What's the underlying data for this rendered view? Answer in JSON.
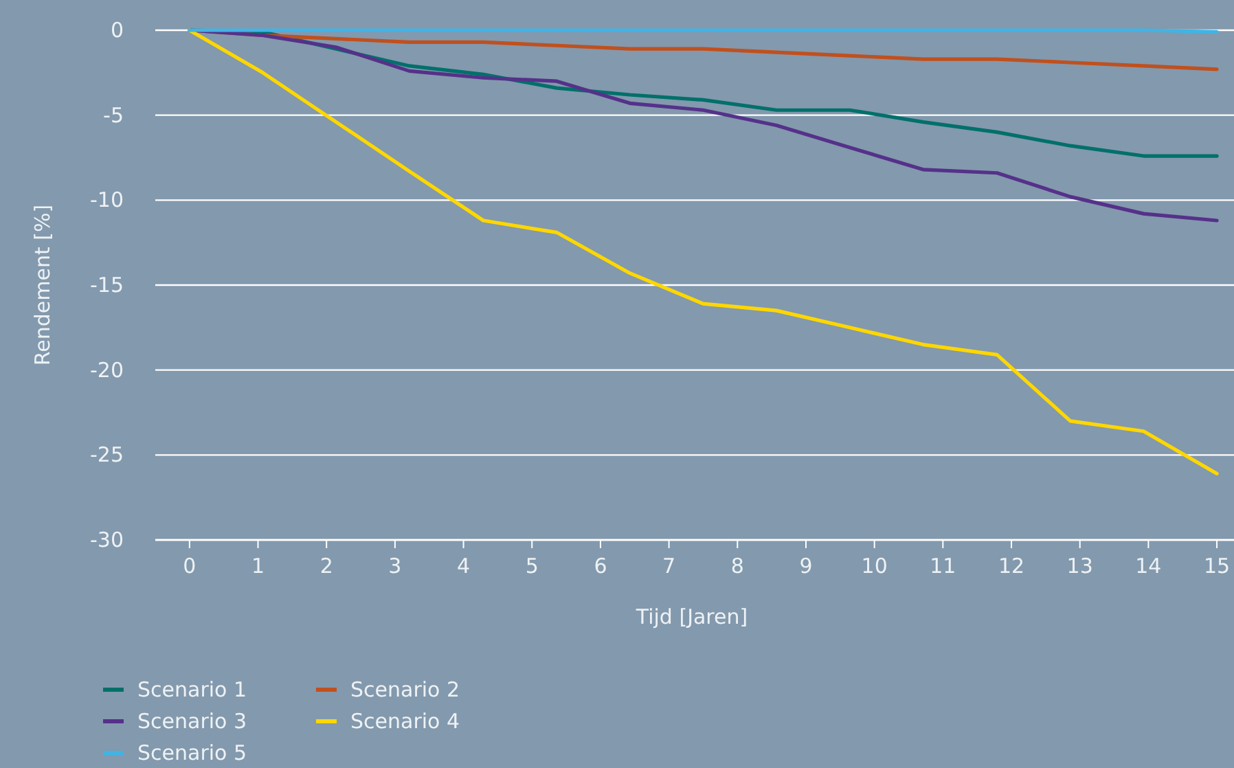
{
  "chart_data": {
    "type": "line",
    "xlabel": "Tijd [Jaren]",
    "ylabel": "Rendement [%]",
    "x": [
      0,
      1.07,
      2.14,
      3.21,
      4.29,
      5.36,
      6.43,
      7.5,
      8.57,
      9.64,
      10.71,
      11.79,
      12.86,
      13.93,
      15
    ],
    "series": [
      {
        "name": "Scenario 1",
        "color": "#00706a",
        "values": [
          0,
          -0.1,
          -1.1,
          -2.1,
          -2.6,
          -3.4,
          -3.8,
          -4.1,
          -4.7,
          -4.7,
          -5.4,
          -6.0,
          -6.8,
          -7.4,
          -7.4
        ]
      },
      {
        "name": "Scenario 2",
        "color": "#c0501e",
        "values": [
          0,
          -0.3,
          -0.5,
          -0.7,
          -0.7,
          -0.9,
          -1.1,
          -1.1,
          -1.3,
          -1.5,
          -1.7,
          -1.7,
          -1.9,
          -2.1,
          -2.3
        ]
      },
      {
        "name": "Scenario 3",
        "color": "#55318a",
        "values": [
          0,
          -0.3,
          -1.0,
          -2.4,
          -2.8,
          -3.0,
          -4.3,
          -4.7,
          -5.6,
          -6.9,
          -8.2,
          -8.4,
          -9.8,
          -10.8,
          -11.2
        ]
      },
      {
        "name": "Scenario 4",
        "color": "#ffd700",
        "values": [
          0,
          -2.5,
          -5.4,
          -8.3,
          -11.2,
          -11.9,
          -14.3,
          -16.1,
          -16.5,
          -17.5,
          -18.5,
          -19.1,
          -23.0,
          -23.6,
          -26.1
        ]
      },
      {
        "name": "Scenario 5",
        "color": "#40b4e5",
        "values": [
          0,
          0,
          0,
          0,
          0,
          0,
          0,
          0,
          0,
          0,
          0,
          0,
          0,
          0,
          -0.1
        ]
      }
    ],
    "xlim": [
      -0.5,
      15.25
    ],
    "xticks": [
      0,
      1,
      2,
      3,
      4,
      5,
      6,
      7,
      8,
      9,
      10,
      11,
      12,
      13,
      14,
      15
    ],
    "ylim": [
      -30,
      0
    ],
    "yticks": [
      -30,
      -25,
      -20,
      -15,
      -10,
      -5,
      0
    ],
    "grid": "y",
    "legend": "bottom",
    "marker": "none",
    "line_style": "solid"
  }
}
